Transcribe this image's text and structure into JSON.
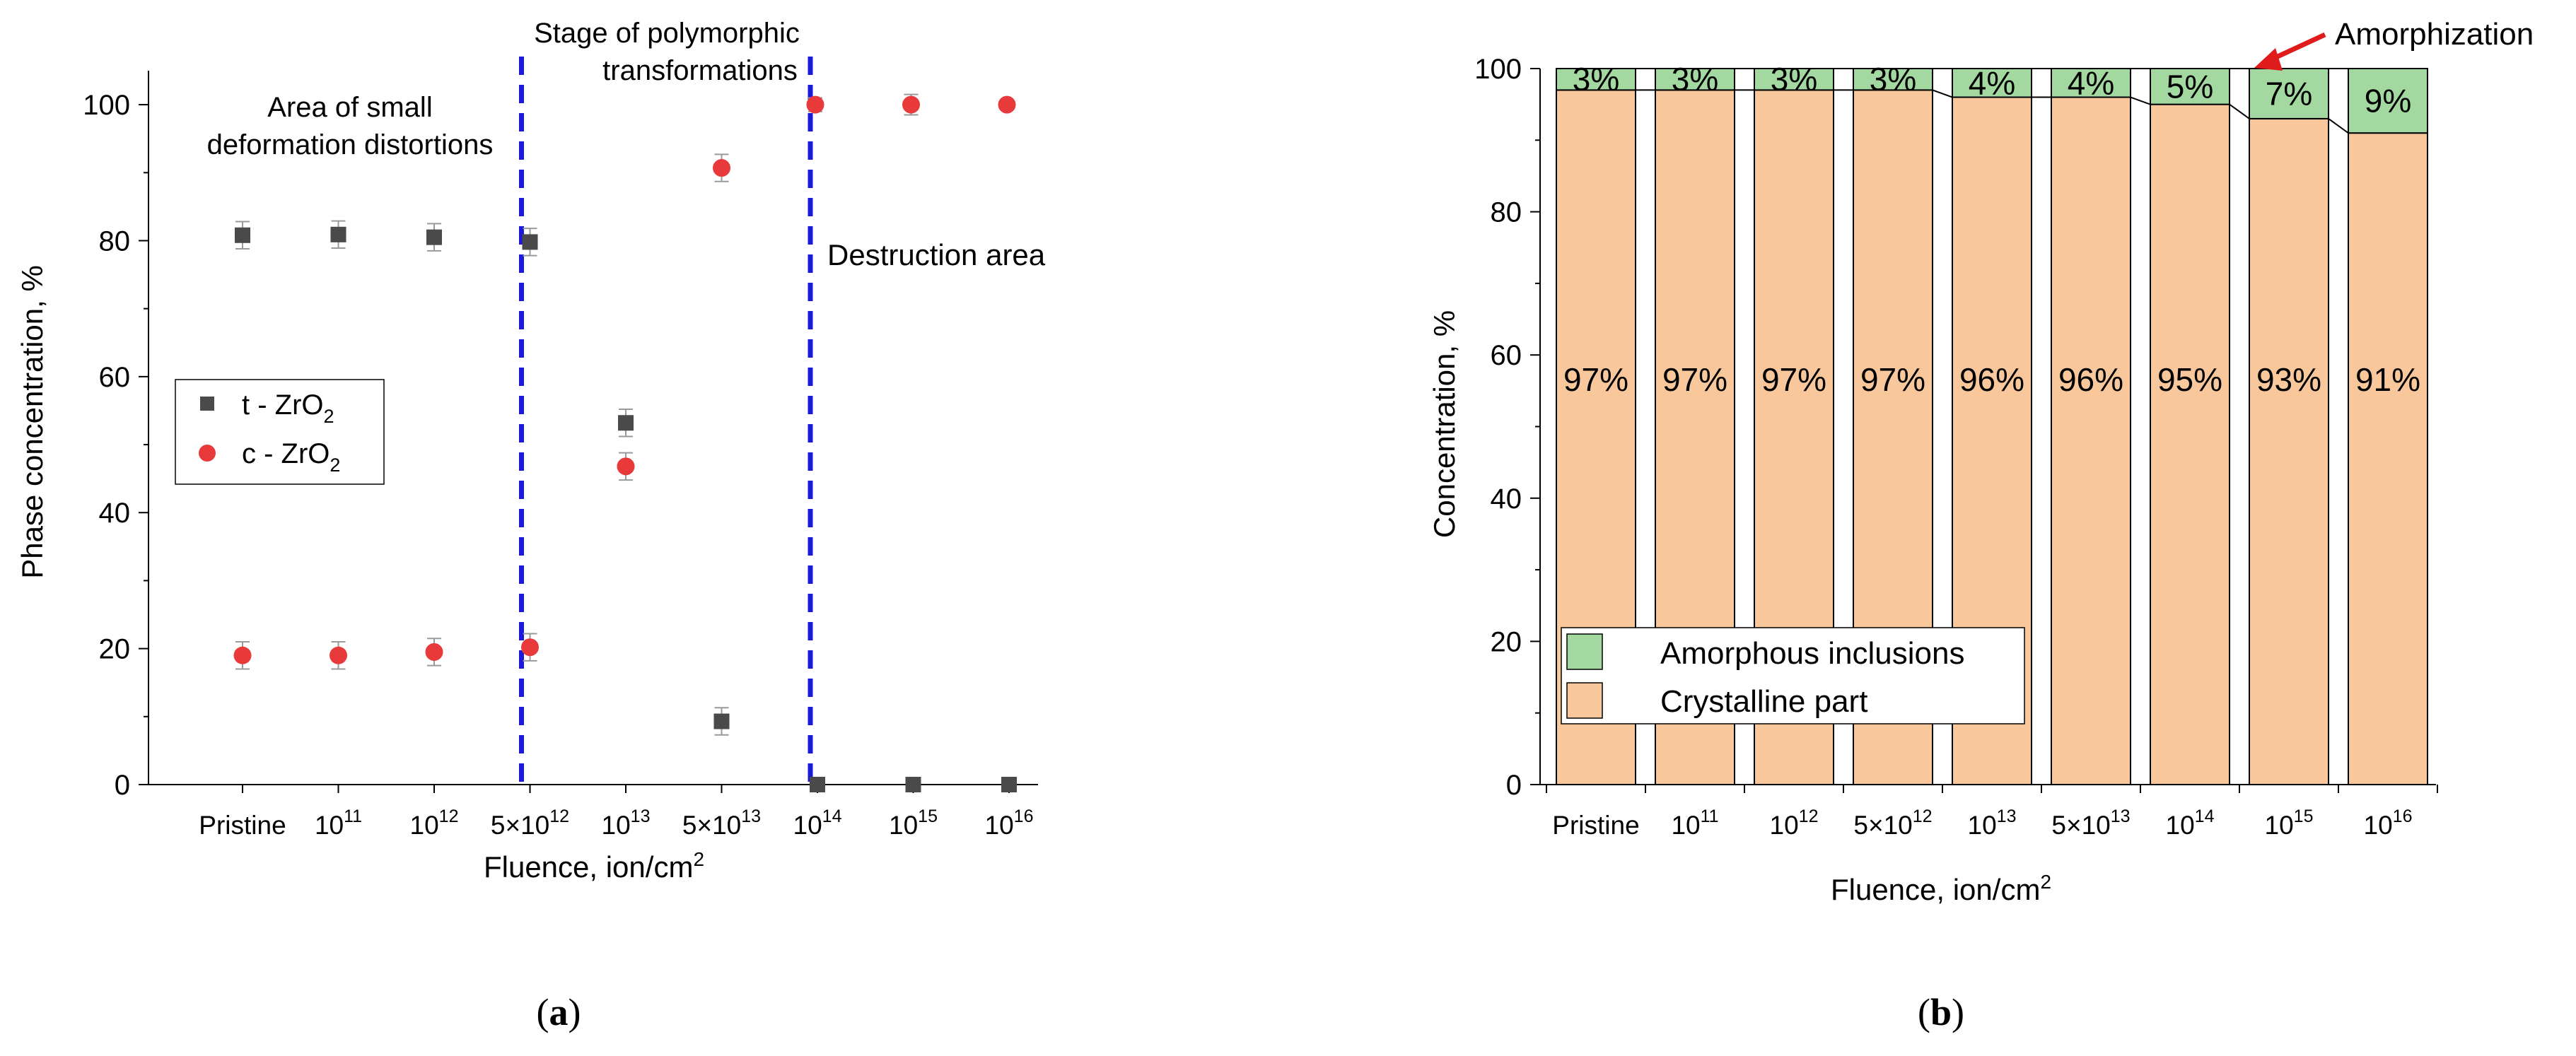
{
  "figure": {
    "panel_a_label": "a",
    "panel_b_label": "b"
  },
  "chart_data": [
    {
      "id": "a",
      "type": "scatter",
      "categories": [
        "Pristine",
        "10|11",
        "10|12",
        "5×10|12",
        "10|13",
        "5×10|13",
        "10|14",
        "10|15",
        "10|16"
      ],
      "series": [
        {
          "name": "t - ZrO2",
          "legend_main": "t - ZrO",
          "legend_sub": "2",
          "marker": "square",
          "color": "#4a4a4a",
          "values": [
            80.8,
            80.9,
            80.5,
            79.8,
            53.2,
            9.3,
            0,
            0,
            0
          ],
          "errors": [
            2.0,
            2.0,
            2.0,
            2.0,
            2.0,
            2.0,
            0,
            0,
            0
          ]
        },
        {
          "name": "c - ZrO2",
          "legend_main": "c - ZrO",
          "legend_sub": "2",
          "marker": "circle",
          "color": "#e83a3a",
          "values": [
            19.0,
            19.0,
            19.5,
            20.2,
            46.8,
            90.7,
            100,
            100,
            100
          ],
          "errors": [
            2.0,
            2.0,
            2.0,
            2.0,
            2.0,
            2.0,
            1.0,
            1.5,
            0
          ]
        }
      ],
      "xlabel_main": "Fluence, ion/cm",
      "xlabel_sup": "2",
      "ylabel": "Phase concentration, %",
      "ylim": [
        0,
        105
      ],
      "yticks": [
        0,
        20,
        40,
        60,
        80,
        100
      ],
      "dividers_at": [
        "5×10|12",
        "10|14"
      ],
      "divider_color": "#1a1adb",
      "annotations": [
        "Area of small",
        "deformation distortions",
        "Stage of polymorphic",
        "transformations",
        "Destruction area"
      ]
    },
    {
      "id": "b",
      "type": "bar",
      "stacked": true,
      "categories": [
        "Pristine",
        "10|11",
        "10|12",
        "5×10|12",
        "10|13",
        "5×10|13",
        "10|14",
        "10|15",
        "10|16"
      ],
      "series": [
        {
          "name": "Crystalline part",
          "color": "#f9c79c",
          "values": [
            97,
            97,
            97,
            97,
            96,
            96,
            95,
            93,
            91
          ],
          "labels": [
            "97%",
            "97%",
            "97%",
            "97%",
            "96%",
            "96%",
            "95%",
            "93%",
            "91%"
          ]
        },
        {
          "name": "Amorphous inclusions",
          "color": "#a3d9a0",
          "values": [
            3,
            3,
            3,
            3,
            4,
            4,
            5,
            7,
            9
          ],
          "labels": [
            "3%",
            "3%",
            "3%",
            "3%",
            "4%",
            "4%",
            "5%",
            "7%",
            "9%"
          ]
        }
      ],
      "legend": [
        "Amorphous inclusions",
        "Crystalline part"
      ],
      "xlabel_main": "Fluence, ion/cm",
      "xlabel_sup": "2",
      "ylabel": "Concentration, %",
      "ylim": [
        0,
        100
      ],
      "yticks": [
        0,
        20,
        40,
        60,
        80,
        100
      ],
      "annotation": "Amorphization",
      "annotation_arrow_color": "#e01b1b"
    }
  ]
}
